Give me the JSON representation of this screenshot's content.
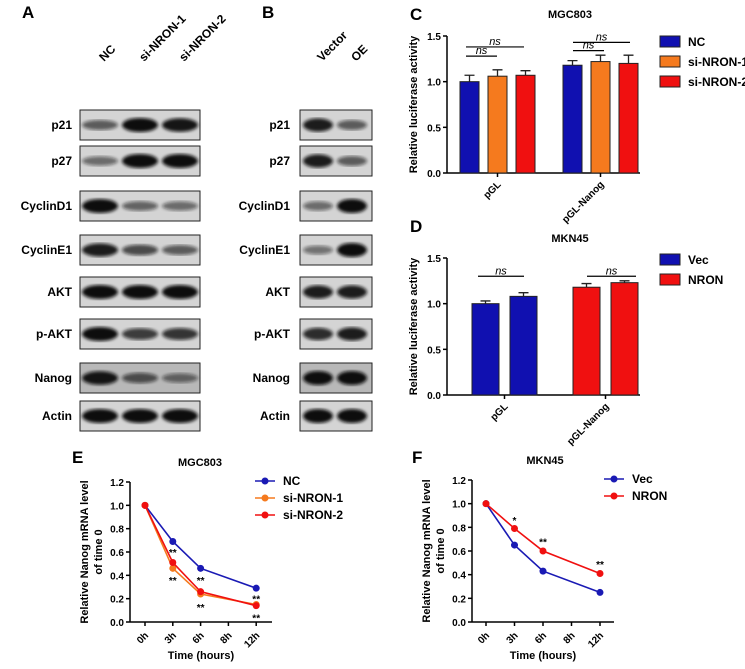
{
  "panels": {
    "A": "A",
    "B": "B",
    "C": "C",
    "D": "D",
    "E": "E",
    "F": "F"
  },
  "blot_rows": [
    "p21",
    "p27",
    "CyclinD1",
    "CyclinE1",
    "AKT",
    "p-AKT",
    "Nanog",
    "Actin"
  ],
  "blot_A": {
    "lanes": [
      "NC",
      "si-NRON-1",
      "si-NRON-2"
    ],
    "band_intensity": [
      [
        0.5,
        1,
        0.95
      ],
      [
        0.4,
        1,
        1
      ],
      [
        1,
        0.45,
        0.4
      ],
      [
        0.9,
        0.6,
        0.5
      ],
      [
        1,
        1,
        1
      ],
      [
        1,
        0.7,
        0.75
      ],
      [
        0.95,
        0.55,
        0.4
      ],
      [
        1,
        1,
        1
      ]
    ]
  },
  "blot_B": {
    "lanes": [
      "Vector",
      "OE"
    ],
    "band_intensity": [
      [
        0.9,
        0.5
      ],
      [
        0.9,
        0.5
      ],
      [
        0.4,
        1
      ],
      [
        0.35,
        1
      ],
      [
        0.9,
        0.9
      ],
      [
        0.8,
        0.9
      ],
      [
        1,
        1
      ],
      [
        1,
        1
      ]
    ]
  },
  "chart_data": [
    {
      "panel": "C",
      "type": "bar",
      "title": "MGC803",
      "ylabel": "Relative luciferase activity",
      "ylim": [
        0,
        1.5
      ],
      "yticks": [
        0.0,
        0.5,
        1.0,
        1.5
      ],
      "categories": [
        "pGL",
        "pGL-Nanog"
      ],
      "series": [
        {
          "name": "NC",
          "color": "#1010b0",
          "values": [
            1.0,
            1.18
          ],
          "errors": [
            0.07,
            0.05
          ]
        },
        {
          "name": "si-NRON-1",
          "color": "#f57a1e",
          "values": [
            1.06,
            1.22
          ],
          "errors": [
            0.07,
            0.07
          ]
        },
        {
          "name": "si-NRON-2",
          "color": "#f01010",
          "values": [
            1.07,
            1.2
          ],
          "errors": [
            0.05,
            0.09
          ]
        }
      ],
      "annotations": [
        "ns",
        "ns",
        "ns",
        "ns"
      ],
      "legend": "right"
    },
    {
      "panel": "D",
      "type": "bar",
      "title": "MKN45",
      "ylabel": "Relative luciferase activity",
      "ylim": [
        0,
        1.5
      ],
      "yticks": [
        0.0,
        0.5,
        1.0,
        1.5
      ],
      "categories": [
        "pGL",
        "pGL-Nanog"
      ],
      "series": [
        {
          "name": "Vec",
          "color": "#1010b0",
          "values": [
            1.0,
            1.18
          ],
          "errors": [
            0.03,
            0.04
          ],
          "bar_colors": [
            "#1010b0",
            "#f01010"
          ]
        },
        {
          "name": "NRON",
          "color": "#f01010",
          "values": [
            1.08,
            1.23
          ],
          "errors": [
            0.04,
            0.02
          ],
          "bar_colors": [
            "#1010b0",
            "#f01010"
          ]
        }
      ],
      "annotations": [
        "ns",
        "ns"
      ],
      "legend": "right"
    },
    {
      "panel": "E",
      "type": "line",
      "title": "MGC803",
      "ylabel": [
        "Relative Nanog mRNA level",
        "of time 0"
      ],
      "xlabel": "Time (hours)",
      "ylim": [
        0,
        1.2
      ],
      "yticks": [
        0.0,
        0.2,
        0.4,
        0.6,
        0.8,
        1.0,
        1.2
      ],
      "x": [
        "0h",
        "3h",
        "6h",
        "8h",
        "12h"
      ],
      "series": [
        {
          "name": "NC",
          "color": "#1a1ab4",
          "values": [
            1.0,
            0.69,
            0.46,
            null,
            0.29
          ]
        },
        {
          "name": "si-NRON-1",
          "color": "#f57a1e",
          "values": [
            1.0,
            0.46,
            0.24,
            null,
            0.15
          ]
        },
        {
          "name": "si-NRON-2",
          "color": "#f01010",
          "values": [
            1.0,
            0.51,
            0.26,
            null,
            0.14
          ]
        }
      ],
      "annotations": [
        {
          "x": "3h",
          "y": 0.6,
          "text": "**"
        },
        {
          "x": "3h",
          "y": 0.36,
          "text": "**"
        },
        {
          "x": "6h",
          "y": 0.36,
          "text": "**"
        },
        {
          "x": "6h",
          "y": 0.13,
          "text": "**"
        },
        {
          "x": "12h",
          "y": 0.2,
          "text": "**"
        },
        {
          "x": "12h",
          "y": 0.04,
          "text": "**"
        }
      ],
      "legend": "top-right"
    },
    {
      "panel": "F",
      "type": "line",
      "title": "MKN45",
      "ylabel": [
        "Relative Nanog mRNA level",
        "of time 0"
      ],
      "xlabel": "Time (hours)",
      "ylim": [
        0,
        1.2
      ],
      "yticks": [
        0.0,
        0.2,
        0.4,
        0.6,
        0.8,
        1.0,
        1.2
      ],
      "x": [
        "0h",
        "3h",
        "6h",
        "8h",
        "12h"
      ],
      "series": [
        {
          "name": "Vec",
          "color": "#1a1ab4",
          "values": [
            1.0,
            0.65,
            0.43,
            null,
            0.25
          ]
        },
        {
          "name": "NRON",
          "color": "#f01010",
          "values": [
            1.0,
            0.79,
            0.6,
            null,
            0.41
          ]
        }
      ],
      "annotations": [
        {
          "x": "3h",
          "y": 0.86,
          "text": "*"
        },
        {
          "x": "6h",
          "y": 0.68,
          "text": "**"
        },
        {
          "x": "12h",
          "y": 0.49,
          "text": "**"
        }
      ],
      "legend": "top-right"
    }
  ]
}
